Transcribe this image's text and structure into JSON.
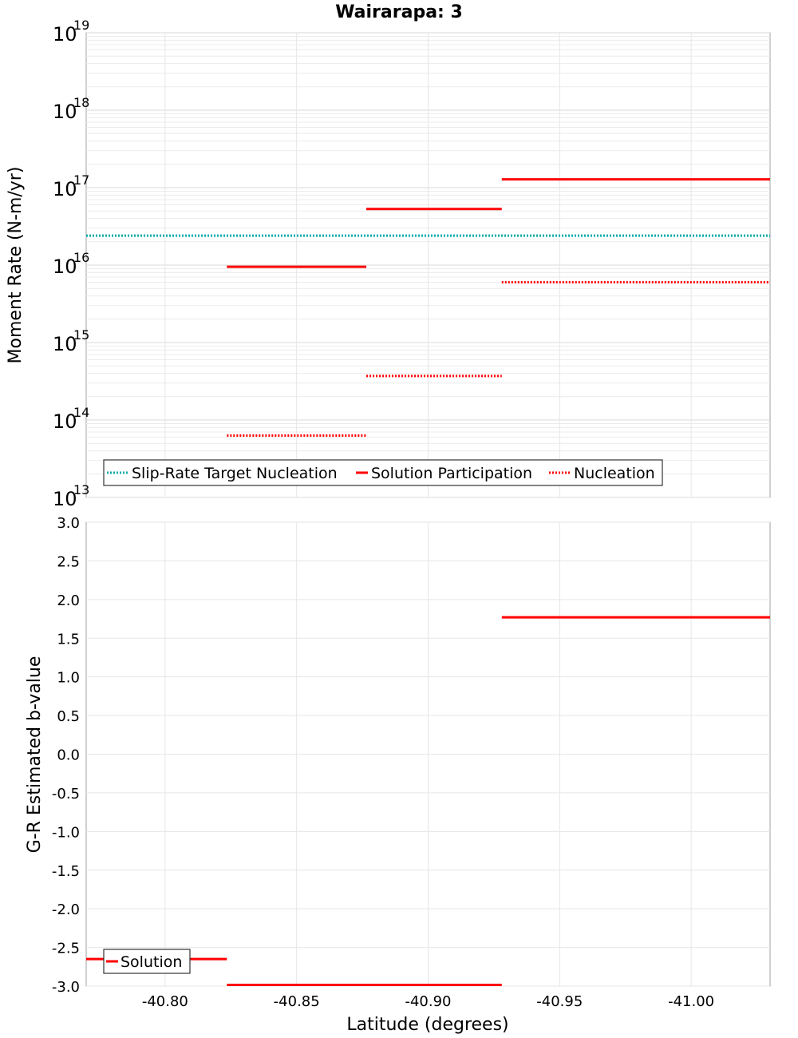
{
  "chart_data": [
    {
      "type": "line",
      "title": "Wairarapa: 3",
      "xlabel": "",
      "ylabel": "Moment Rate (N-m/yr)",
      "yscale": "log",
      "ylim": [
        10000000000000.0,
        1e+19
      ],
      "xlim": [
        -40.77,
        -41.03
      ],
      "y_ticks": [
        {
          "base": "10",
          "exp": "13",
          "value": 10000000000000.0
        },
        {
          "base": "10",
          "exp": "14",
          "value": 100000000000000.0
        },
        {
          "base": "10",
          "exp": "15",
          "value": 1000000000000000.0
        },
        {
          "base": "10",
          "exp": "16",
          "value": 1e+16
        },
        {
          "base": "10",
          "exp": "17",
          "value": 1e+17
        },
        {
          "base": "10",
          "exp": "18",
          "value": 1e+18
        },
        {
          "base": "10",
          "exp": "19",
          "value": 1e+19
        }
      ],
      "series": [
        {
          "name": "Slip-Rate Target Nucleation",
          "color": "#00aaaa",
          "style": "dotted",
          "segments": [
            {
              "x0": -40.77,
              "x1": -41.03,
              "y": 2.4e+16
            }
          ]
        },
        {
          "name": "Solution Participation",
          "color": "#ff0000",
          "style": "solid",
          "segments": [
            {
              "x0": -40.8235,
              "x1": -40.8765,
              "y": 9500000000000000.0
            },
            {
              "x0": -40.8765,
              "x1": -40.928,
              "y": 5.3e+16
            },
            {
              "x0": -40.928,
              "x1": -41.03,
              "y": 1.28e+17
            }
          ]
        },
        {
          "name": "Nucleation",
          "color": "#ff0000",
          "style": "dotted",
          "segments": [
            {
              "x0": -40.8235,
              "x1": -40.8765,
              "y": 63000000000000.0
            },
            {
              "x0": -40.8765,
              "x1": -40.928,
              "y": 370000000000000.0
            },
            {
              "x0": -40.928,
              "x1": -41.03,
              "y": 6000000000000000.0
            }
          ]
        }
      ],
      "legend": "bottom-left"
    },
    {
      "type": "line",
      "title": "",
      "xlabel": "Latitude (degrees)",
      "ylabel": "G-R Estimated b-value",
      "ylim": [
        -3.0,
        3.0
      ],
      "xlim": [
        -40.77,
        -41.03
      ],
      "y_ticks": [
        "3.0",
        "2.5",
        "2.0",
        "1.5",
        "1.0",
        "0.5",
        "0.0",
        "-0.5",
        "-1.0",
        "-1.5",
        "-2.0",
        "-2.5",
        "-3.0"
      ],
      "x_ticks": [
        "-40.80",
        "-40.85",
        "-40.90",
        "-40.95",
        "-41.00"
      ],
      "series": [
        {
          "name": "Solution",
          "color": "#ff0000",
          "style": "solid",
          "segments": [
            {
              "x0": -40.77,
              "x1": -40.8235,
              "y": -2.65
            },
            {
              "x0": -40.8235,
              "x1": -40.8765,
              "y": -3.0
            },
            {
              "x0": -40.8765,
              "x1": -40.928,
              "y": -3.0
            },
            {
              "x0": -40.928,
              "x1": -41.03,
              "y": 1.77
            }
          ]
        }
      ],
      "legend": "bottom-left"
    }
  ]
}
